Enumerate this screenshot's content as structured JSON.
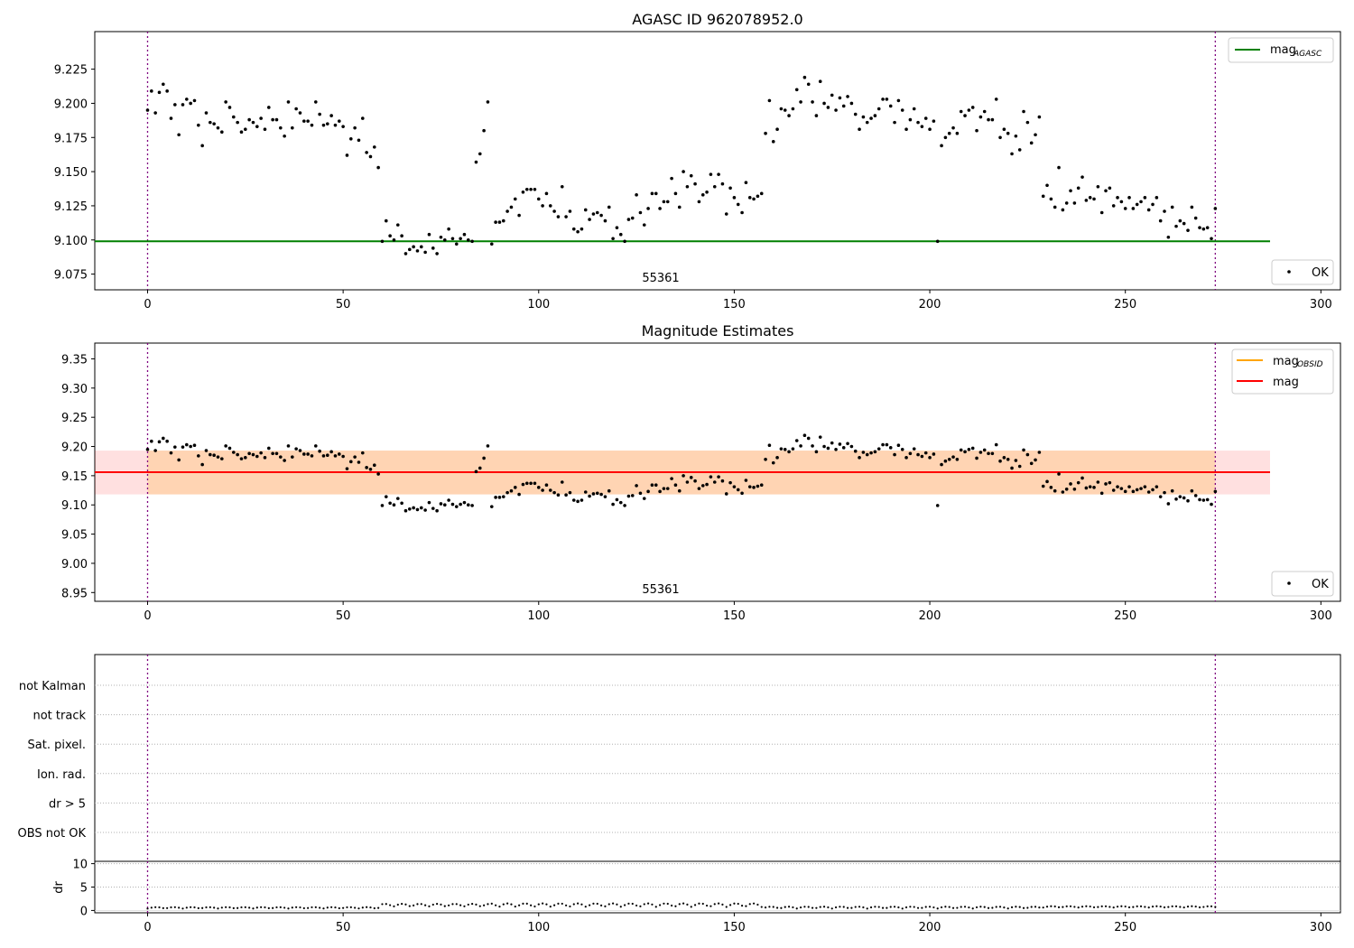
{
  "chart_data": [
    {
      "type": "scatter",
      "title": "AGASC ID 962078952.0",
      "xlabel": "",
      "ylabel": "",
      "xlim": [
        -13.5,
        305
      ],
      "ylim": [
        9.0635,
        9.2525
      ],
      "xticks": [
        0,
        50,
        100,
        150,
        200,
        250,
        300
      ],
      "yticks": [
        9.075,
        9.1,
        9.125,
        9.15,
        9.175,
        9.2,
        9.225
      ],
      "ytick_labels": [
        "9.075",
        "9.100",
        "9.125",
        "9.150",
        "9.175",
        "9.200",
        "9.225"
      ],
      "obsid_label": "55361",
      "obsid_label_x": 136.5,
      "obs_boundaries": [
        0,
        273
      ],
      "hlines": [
        {
          "name": "mag",
          "subscript": "AGASC",
          "y": 9.099,
          "x0": -13.5,
          "x1": 287,
          "color": "#008000"
        }
      ],
      "legends": {
        "lines": [
          {
            "name": "mag",
            "subscript": "AGASC",
            "color": "#008000"
          }
        ],
        "points": [
          {
            "name": "OK",
            "color": "#000000"
          }
        ]
      },
      "ok_points": [
        [
          0,
          9.195
        ],
        [
          1,
          9.209
        ],
        [
          2,
          9.193
        ],
        [
          3,
          9.208
        ],
        [
          4,
          9.214
        ],
        [
          5,
          9.209
        ],
        [
          6,
          9.189
        ],
        [
          7,
          9.199
        ],
        [
          8,
          9.177
        ],
        [
          9,
          9.199
        ],
        [
          10,
          9.203
        ],
        [
          11,
          9.2
        ],
        [
          12,
          9.202
        ],
        [
          13,
          9.184
        ],
        [
          14,
          9.169
        ],
        [
          15,
          9.193
        ],
        [
          16,
          9.186
        ],
        [
          17,
          9.185
        ],
        [
          18,
          9.182
        ],
        [
          19,
          9.179
        ],
        [
          20,
          9.201
        ],
        [
          21,
          9.197
        ],
        [
          22,
          9.19
        ],
        [
          23,
          9.186
        ],
        [
          24,
          9.179
        ],
        [
          25,
          9.181
        ],
        [
          26,
          9.188
        ],
        [
          27,
          9.186
        ],
        [
          28,
          9.183
        ],
        [
          29,
          9.189
        ],
        [
          30,
          9.181
        ],
        [
          31,
          9.197
        ],
        [
          32,
          9.188
        ],
        [
          33,
          9.188
        ],
        [
          34,
          9.182
        ],
        [
          35,
          9.176
        ],
        [
          36,
          9.201
        ],
        [
          37,
          9.182
        ],
        [
          38,
          9.196
        ],
        [
          39,
          9.193
        ],
        [
          40,
          9.187
        ],
        [
          41,
          9.187
        ],
        [
          42,
          9.184
        ],
        [
          43,
          9.201
        ],
        [
          44,
          9.192
        ],
        [
          45,
          9.184
        ],
        [
          46,
          9.185
        ],
        [
          47,
          9.191
        ],
        [
          48,
          9.184
        ],
        [
          49,
          9.187
        ],
        [
          50,
          9.183
        ],
        [
          51,
          9.162
        ],
        [
          52,
          9.174
        ],
        [
          53,
          9.182
        ],
        [
          54,
          9.173
        ],
        [
          55,
          9.189
        ],
        [
          56,
          9.164
        ],
        [
          57,
          9.161
        ],
        [
          58,
          9.168
        ],
        [
          59,
          9.153
        ],
        [
          60,
          9.099
        ],
        [
          61,
          9.114
        ],
        [
          62,
          9.103
        ],
        [
          63,
          9.1
        ],
        [
          64,
          9.111
        ],
        [
          65,
          9.103
        ],
        [
          66,
          9.09
        ],
        [
          67,
          9.093
        ],
        [
          68,
          9.095
        ],
        [
          69,
          9.092
        ],
        [
          70,
          9.095
        ],
        [
          71,
          9.091
        ],
        [
          72,
          9.104
        ],
        [
          73,
          9.094
        ],
        [
          74,
          9.09
        ],
        [
          75,
          9.102
        ],
        [
          76,
          9.1
        ],
        [
          77,
          9.108
        ],
        [
          78,
          9.101
        ],
        [
          79,
          9.097
        ],
        [
          80,
          9.101
        ],
        [
          81,
          9.104
        ],
        [
          82,
          9.1
        ],
        [
          83,
          9.099
        ],
        [
          84,
          9.157
        ],
        [
          85,
          9.163
        ],
        [
          86,
          9.18
        ],
        [
          87,
          9.201
        ],
        [
          88,
          9.097
        ],
        [
          89,
          9.113
        ],
        [
          90,
          9.113
        ],
        [
          91,
          9.114
        ],
        [
          92,
          9.121
        ],
        [
          93,
          9.124
        ],
        [
          94,
          9.13
        ],
        [
          95,
          9.118
        ],
        [
          96,
          9.135
        ],
        [
          97,
          9.137
        ],
        [
          98,
          9.137
        ],
        [
          99,
          9.137
        ],
        [
          100,
          9.13
        ],
        [
          101,
          9.125
        ],
        [
          102,
          9.134
        ],
        [
          103,
          9.125
        ],
        [
          104,
          9.121
        ],
        [
          105,
          9.117
        ],
        [
          106,
          9.139
        ],
        [
          107,
          9.117
        ],
        [
          108,
          9.121
        ],
        [
          109,
          9.108
        ],
        [
          110,
          9.106
        ],
        [
          111,
          9.108
        ],
        [
          112,
          9.122
        ],
        [
          113,
          9.115
        ],
        [
          114,
          9.119
        ],
        [
          115,
          9.12
        ],
        [
          116,
          9.118
        ],
        [
          117,
          9.114
        ],
        [
          118,
          9.124
        ],
        [
          119,
          9.101
        ],
        [
          120,
          9.109
        ],
        [
          121,
          9.104
        ],
        [
          122,
          9.099
        ],
        [
          123,
          9.115
        ],
        [
          124,
          9.116
        ],
        [
          125,
          9.133
        ],
        [
          126,
          9.12
        ],
        [
          127,
          9.111
        ],
        [
          128,
          9.123
        ],
        [
          129,
          9.134
        ],
        [
          130,
          9.134
        ],
        [
          131,
          9.123
        ],
        [
          132,
          9.128
        ],
        [
          133,
          9.128
        ],
        [
          134,
          9.145
        ],
        [
          135,
          9.134
        ],
        [
          136,
          9.124
        ],
        [
          137,
          9.15
        ],
        [
          138,
          9.139
        ],
        [
          139,
          9.147
        ],
        [
          140,
          9.141
        ],
        [
          141,
          9.128
        ],
        [
          142,
          9.133
        ],
        [
          143,
          9.135
        ],
        [
          144,
          9.148
        ],
        [
          145,
          9.139
        ],
        [
          146,
          9.148
        ],
        [
          147,
          9.141
        ],
        [
          148,
          9.119
        ],
        [
          149,
          9.138
        ],
        [
          150,
          9.131
        ],
        [
          151,
          9.126
        ],
        [
          152,
          9.12
        ],
        [
          153,
          9.142
        ],
        [
          154,
          9.131
        ],
        [
          155,
          9.13
        ],
        [
          156,
          9.132
        ],
        [
          157,
          9.134
        ],
        [
          158,
          9.178
        ],
        [
          159,
          9.202
        ],
        [
          160,
          9.172
        ],
        [
          161,
          9.181
        ],
        [
          162,
          9.196
        ],
        [
          163,
          9.195
        ],
        [
          164,
          9.191
        ],
        [
          165,
          9.196
        ],
        [
          166,
          9.21
        ],
        [
          167,
          9.201
        ],
        [
          168,
          9.219
        ],
        [
          169,
          9.214
        ],
        [
          170,
          9.201
        ],
        [
          171,
          9.191
        ],
        [
          172,
          9.216
        ],
        [
          173,
          9.2
        ],
        [
          174,
          9.197
        ],
        [
          175,
          9.206
        ],
        [
          176,
          9.195
        ],
        [
          177,
          9.204
        ],
        [
          178,
          9.198
        ],
        [
          179,
          9.205
        ],
        [
          180,
          9.2
        ],
        [
          181,
          9.192
        ],
        [
          182,
          9.181
        ],
        [
          183,
          9.19
        ],
        [
          184,
          9.186
        ],
        [
          185,
          9.189
        ],
        [
          186,
          9.191
        ],
        [
          187,
          9.196
        ],
        [
          188,
          9.203
        ],
        [
          189,
          9.203
        ],
        [
          190,
          9.198
        ],
        [
          191,
          9.186
        ],
        [
          192,
          9.202
        ],
        [
          193,
          9.195
        ],
        [
          194,
          9.181
        ],
        [
          195,
          9.188
        ],
        [
          196,
          9.196
        ],
        [
          197,
          9.186
        ],
        [
          198,
          9.183
        ],
        [
          199,
          9.189
        ],
        [
          200,
          9.181
        ],
        [
          201,
          9.187
        ],
        [
          202,
          9.099
        ],
        [
          203,
          9.169
        ],
        [
          204,
          9.175
        ],
        [
          205,
          9.178
        ],
        [
          206,
          9.182
        ],
        [
          207,
          9.178
        ],
        [
          208,
          9.194
        ],
        [
          209,
          9.191
        ],
        [
          210,
          9.195
        ],
        [
          211,
          9.197
        ],
        [
          212,
          9.18
        ],
        [
          213,
          9.19
        ],
        [
          214,
          9.194
        ],
        [
          215,
          9.188
        ],
        [
          216,
          9.188
        ],
        [
          217,
          9.203
        ],
        [
          218,
          9.175
        ],
        [
          219,
          9.181
        ],
        [
          220,
          9.178
        ],
        [
          221,
          9.163
        ],
        [
          222,
          9.176
        ],
        [
          223,
          9.166
        ],
        [
          224,
          9.194
        ],
        [
          225,
          9.186
        ],
        [
          226,
          9.171
        ],
        [
          227,
          9.177
        ],
        [
          228,
          9.19
        ],
        [
          229,
          9.132
        ],
        [
          230,
          9.14
        ],
        [
          231,
          9.13
        ],
        [
          232,
          9.124
        ],
        [
          233,
          9.153
        ],
        [
          234,
          9.122
        ],
        [
          235,
          9.127
        ],
        [
          236,
          9.136
        ],
        [
          237,
          9.127
        ],
        [
          238,
          9.138
        ],
        [
          239,
          9.146
        ],
        [
          240,
          9.129
        ],
        [
          241,
          9.131
        ],
        [
          242,
          9.13
        ],
        [
          243,
          9.139
        ],
        [
          244,
          9.12
        ],
        [
          245,
          9.136
        ],
        [
          246,
          9.138
        ],
        [
          247,
          9.125
        ],
        [
          248,
          9.131
        ],
        [
          249,
          9.128
        ],
        [
          250,
          9.123
        ],
        [
          251,
          9.131
        ],
        [
          252,
          9.123
        ],
        [
          253,
          9.126
        ],
        [
          254,
          9.128
        ],
        [
          255,
          9.131
        ],
        [
          256,
          9.122
        ],
        [
          257,
          9.126
        ],
        [
          258,
          9.131
        ],
        [
          259,
          9.114
        ],
        [
          260,
          9.121
        ],
        [
          261,
          9.102
        ],
        [
          262,
          9.124
        ],
        [
          263,
          9.11
        ],
        [
          264,
          9.114
        ],
        [
          265,
          9.112
        ],
        [
          266,
          9.107
        ],
        [
          267,
          9.124
        ],
        [
          268,
          9.116
        ],
        [
          269,
          9.109
        ],
        [
          270,
          9.108
        ],
        [
          271,
          9.109
        ],
        [
          272,
          9.101
        ],
        [
          273,
          9.123
        ]
      ]
    },
    {
      "type": "scatter",
      "title": "Magnitude Estimates",
      "xlabel": "",
      "ylabel": "",
      "xlim": [
        -13.5,
        305
      ],
      "ylim": [
        8.935,
        9.377
      ],
      "xticks": [
        0,
        50,
        100,
        150,
        200,
        250,
        300
      ],
      "yticks": [
        8.95,
        9.0,
        9.05,
        9.1,
        9.15,
        9.2,
        9.25,
        9.3,
        9.35
      ],
      "ytick_labels": [
        "8.95",
        "9.00",
        "9.05",
        "9.10",
        "9.15",
        "9.20",
        "9.25",
        "9.30",
        "9.35"
      ],
      "obsid_label": "55361",
      "obsid_label_x": 136.5,
      "obs_boundaries": [
        0,
        273
      ],
      "bands": [
        {
          "name": "mag",
          "y0": 9.118,
          "y1": 9.193,
          "x0": -13.5,
          "x1": 287,
          "color": "#ff0000",
          "opacity": 0.12
        },
        {
          "name": "mag_OBSID",
          "y0": 9.118,
          "y1": 9.193,
          "x0": 0,
          "x1": 273,
          "color": "#ffa500",
          "opacity": 0.2
        }
      ],
      "hlines": [
        {
          "name": "mag",
          "subscript": "OBSID",
          "y": 9.156,
          "x0": 0,
          "x1": 273,
          "color": "#ffa500"
        },
        {
          "name": "mag",
          "y": 9.156,
          "x0": -13.5,
          "x1": 287,
          "color": "#ff0000"
        }
      ],
      "legends": {
        "lines": [
          {
            "name": "mag",
            "subscript": "OBSID",
            "color": "#ffa500"
          },
          {
            "name": "mag",
            "color": "#ff0000"
          }
        ],
        "points": [
          {
            "name": "OK",
            "color": "#000000"
          }
        ]
      },
      "ok_points_from_panel": 0
    },
    {
      "type": "scatter",
      "title": "",
      "xlabel": "",
      "ylabel": "",
      "xlim": [
        -13.5,
        305
      ],
      "flag_labels": [
        "not Kalman",
        "not track",
        "Sat. pixel.",
        "Ion. rad.",
        "dr > 5",
        "OBS not OK"
      ],
      "obs_boundaries": [
        0,
        273
      ],
      "flag_points": []
    },
    {
      "type": "scatter",
      "title": "",
      "xlabel": "",
      "ylabel": "dr",
      "xlim": [
        -13.5,
        305
      ],
      "ylim": [
        -0.5,
        10.5
      ],
      "xticks": [
        0,
        50,
        100,
        150,
        200,
        250,
        300
      ],
      "yticks": [
        0,
        5,
        10
      ],
      "ytick_labels": [
        "0",
        "5",
        "10"
      ],
      "obs_boundaries": [
        0,
        273
      ],
      "dr_segments": [
        {
          "x0": 0,
          "x1": 59,
          "base": 0.4,
          "amp": 0.3
        },
        {
          "x0": 60,
          "x1": 87,
          "base": 0.8,
          "amp": 0.6
        },
        {
          "x0": 88,
          "x1": 157,
          "base": 0.7,
          "amp": 0.8
        },
        {
          "x0": 158,
          "x1": 228,
          "base": 0.4,
          "amp": 0.4
        },
        {
          "x0": 229,
          "x1": 273,
          "base": 0.6,
          "amp": 0.3
        }
      ]
    }
  ]
}
